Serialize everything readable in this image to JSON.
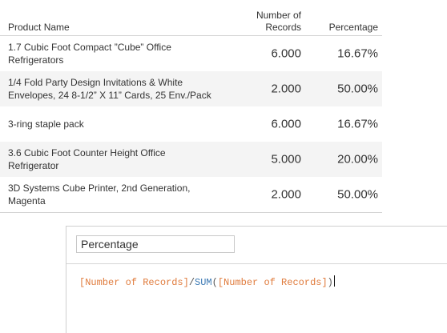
{
  "table": {
    "headers": {
      "product": "Product Name",
      "records_line1": "Number of",
      "records_line2": "Records",
      "percentage": "Percentage"
    },
    "rows": [
      {
        "product_line1": "1.7 Cubic Foot Compact ”Cube” Office",
        "product_line2": "Refrigerators",
        "records": "6.000",
        "percentage": "16.67%"
      },
      {
        "product_line1": "1/4 Fold Party Design Invitations & White",
        "product_line2": "Envelopes, 24 8-1/2” X 11” Cards, 25 Env./Pack",
        "records": "2.000",
        "percentage": "50.00%"
      },
      {
        "product_line1": "3-ring staple pack",
        "product_line2": "",
        "records": "6.000",
        "percentage": "16.67%"
      },
      {
        "product_line1": "3.6 Cubic Foot Counter Height Office",
        "product_line2": "Refrigerator",
        "records": "5.000",
        "percentage": "20.00%"
      },
      {
        "product_line1": "3D Systems Cube Printer, 2nd Generation,",
        "product_line2": "Magenta",
        "records": "2.000",
        "percentage": "50.00%"
      }
    ]
  },
  "calc_editor": {
    "name_value": "Percentage",
    "formula": {
      "field1": "[Number of Records]",
      "operator": "/",
      "function": "SUM",
      "open_paren": "(",
      "field2": "[Number of Records]",
      "close_paren": ")"
    }
  },
  "colors": {
    "field": "#e07b3c",
    "function": "#3c7ab4",
    "row_shade": "#f4f4f4"
  }
}
